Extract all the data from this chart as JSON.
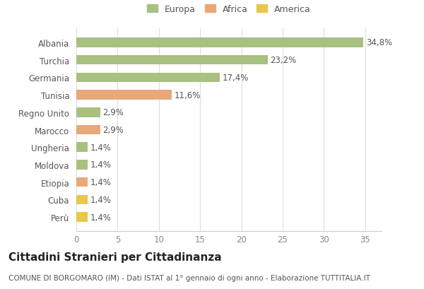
{
  "categories": [
    "Perù",
    "Cuba",
    "Etiopia",
    "Moldova",
    "Ungheria",
    "Marocco",
    "Regno Unito",
    "Tunisia",
    "Germania",
    "Turchia",
    "Albania"
  ],
  "values": [
    1.4,
    1.4,
    1.4,
    1.4,
    1.4,
    2.9,
    2.9,
    11.6,
    17.4,
    23.2,
    34.8
  ],
  "colors": [
    "#e8c84a",
    "#e8c84a",
    "#e8a878",
    "#a8c080",
    "#a8c080",
    "#e8a878",
    "#a8c080",
    "#e8a878",
    "#a8c080",
    "#a8c080",
    "#a8c080"
  ],
  "labels": [
    "1,4%",
    "1,4%",
    "1,4%",
    "1,4%",
    "1,4%",
    "2,9%",
    "2,9%",
    "11,6%",
    "17,4%",
    "23,2%",
    "34,8%"
  ],
  "legend": {
    "Europa": "#a8c080",
    "Africa": "#e8a878",
    "America": "#e8c84a"
  },
  "title": "Cittadini Stranieri per Cittadinanza",
  "subtitle": "COMUNE DI BORGOMARO (IM) - Dati ISTAT al 1° gennaio di ogni anno - Elaborazione TUTTITALIA.IT",
  "xlim": [
    0,
    37
  ],
  "xticks": [
    0,
    5,
    10,
    15,
    20,
    25,
    30,
    35
  ],
  "background_color": "#ffffff",
  "bar_height": 0.55,
  "label_fontsize": 8.5,
  "title_fontsize": 11,
  "subtitle_fontsize": 7.5,
  "ytick_fontsize": 8.5,
  "xtick_fontsize": 8.5
}
